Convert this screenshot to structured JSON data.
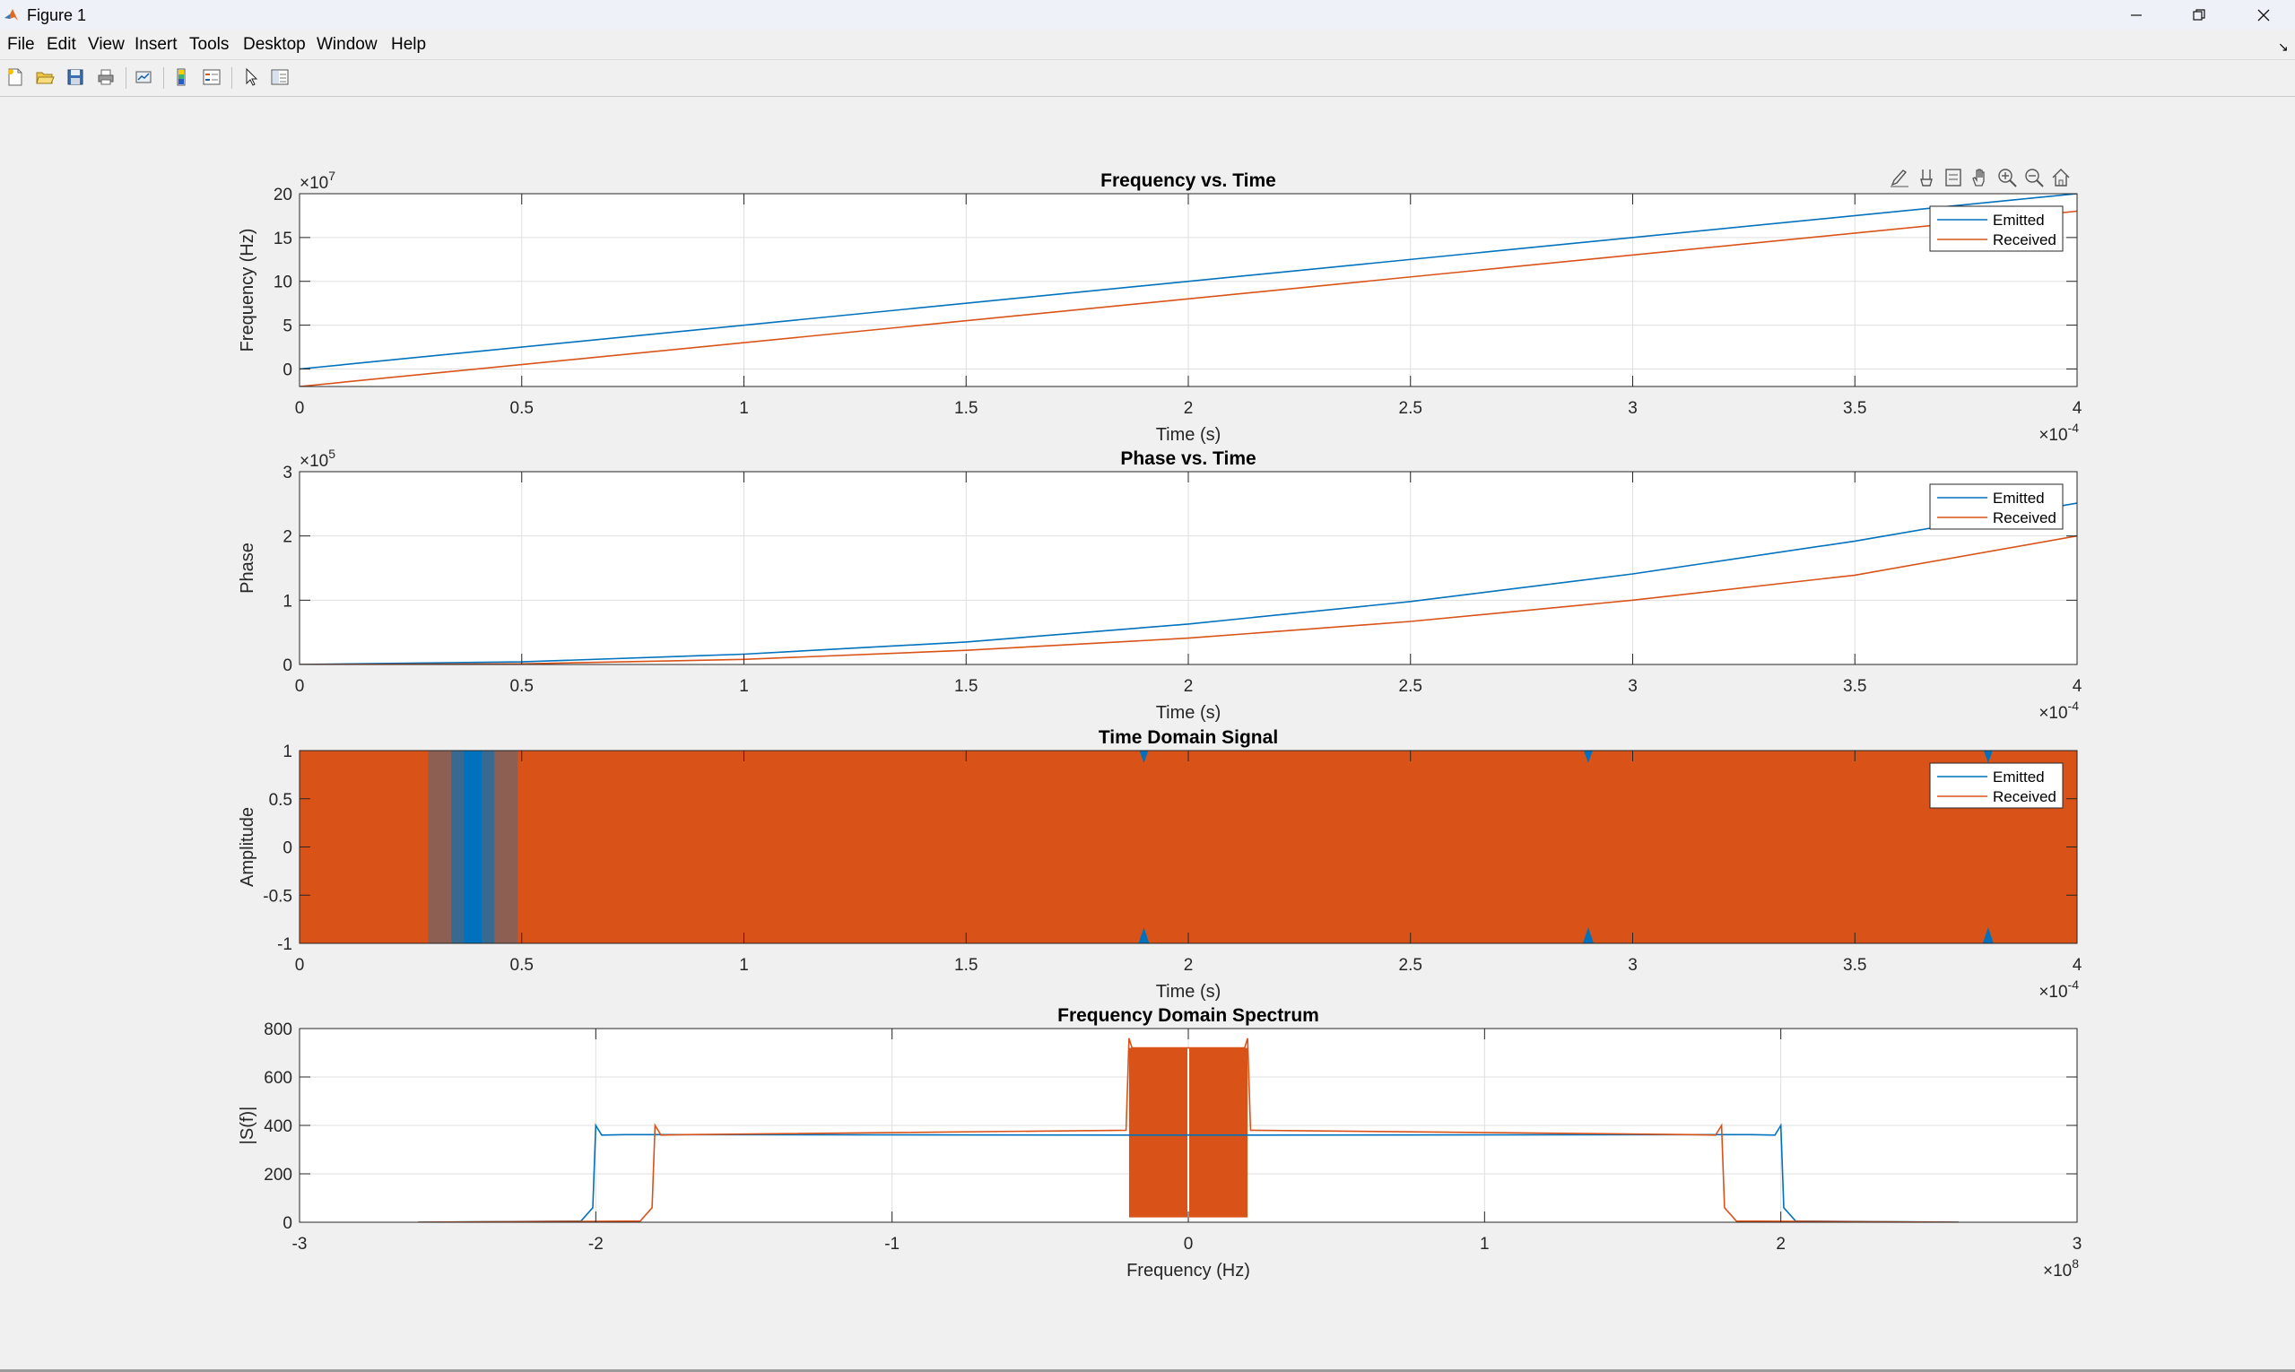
{
  "window": {
    "title": "Figure 1",
    "app_icon": "matlab-icon",
    "controls": [
      "minimize-icon",
      "restore-icon",
      "close-icon"
    ]
  },
  "menu": [
    "File",
    "Edit",
    "View",
    "Insert",
    "Tools",
    "Desktop",
    "Window",
    "Help"
  ],
  "toolbar": [
    "new-figure-icon",
    "open-file-icon",
    "save-icon",
    "print-icon",
    "link-plot-icon",
    "colorbar-icon",
    "legend-icon",
    "edit-plot-arrow-icon",
    "property-inspector-icon"
  ],
  "axes_toolbar": [
    "brush-icon",
    "data-tips-icon",
    "restore-view-icon",
    "pan-hand-icon",
    "zoom-in-icon",
    "zoom-out-icon",
    "home-icon"
  ],
  "colors": {
    "emitted": "#0072BD",
    "received": "#D95319",
    "grid": "#dfdfdf",
    "axis": "#262626"
  },
  "chart_data": [
    {
      "type": "line",
      "title": "Frequency vs. Time",
      "xlabel": "Time (s)",
      "ylabel": "Frequency (Hz)",
      "x_exponent": "-4",
      "y_exponent": "7",
      "xlim": [
        0,
        4
      ],
      "ylim": [
        -2,
        20
      ],
      "xticks": [
        0,
        0.5,
        1,
        1.5,
        2,
        2.5,
        3,
        3.5,
        4
      ],
      "xtick_labels": [
        "0",
        "0.5",
        "1",
        "1.5",
        "2",
        "2.5",
        "3",
        "3.5",
        "4"
      ],
      "yticks": [
        0,
        5,
        10,
        15,
        20
      ],
      "ytick_labels": [
        "0",
        "5",
        "10",
        "15",
        "20"
      ],
      "grid": true,
      "legend": "top-right",
      "series": [
        {
          "name": "Emitted",
          "color": "#0072BD",
          "x": [
            0,
            4
          ],
          "y": [
            0,
            20
          ]
        },
        {
          "name": "Received",
          "color": "#D95319",
          "x": [
            0,
            4
          ],
          "y": [
            -2,
            18
          ]
        }
      ]
    },
    {
      "type": "line",
      "title": "Phase vs. Time",
      "xlabel": "Time (s)",
      "ylabel": "Phase",
      "x_exponent": "-4",
      "y_exponent": "5",
      "xlim": [
        0,
        4
      ],
      "ylim": [
        0,
        3
      ],
      "xticks": [
        0,
        0.5,
        1,
        1.5,
        2,
        2.5,
        3,
        3.5,
        4
      ],
      "xtick_labels": [
        "0",
        "0.5",
        "1",
        "1.5",
        "2",
        "2.5",
        "3",
        "3.5",
        "4"
      ],
      "yticks": [
        0,
        1,
        2,
        3
      ],
      "ytick_labels": [
        "0",
        "1",
        "2",
        "3"
      ],
      "grid": true,
      "legend": "top-right",
      "series": [
        {
          "name": "Emitted",
          "color": "#0072BD",
          "x": [
            0,
            0.5,
            1,
            1.5,
            2,
            2.5,
            3,
            3.5,
            4
          ],
          "y": [
            0,
            0.04,
            0.16,
            0.35,
            0.63,
            0.98,
            1.41,
            1.92,
            2.51
          ]
        },
        {
          "name": "Received",
          "color": "#D95319",
          "x": [
            0,
            0.5,
            1,
            1.5,
            2,
            2.5,
            3,
            3.5,
            4
          ],
          "y": [
            0,
            0.01,
            0.08,
            0.22,
            0.41,
            0.67,
            1.0,
            1.39,
            2.0
          ]
        }
      ]
    },
    {
      "type": "area",
      "title": "Time Domain Signal",
      "xlabel": "Time (s)",
      "ylabel": "Amplitude",
      "x_exponent": "-4",
      "xlim": [
        0,
        4
      ],
      "ylim": [
        -1,
        1
      ],
      "xticks": [
        0,
        0.5,
        1,
        1.5,
        2,
        2.5,
        3,
        3.5,
        4
      ],
      "xtick_labels": [
        "0",
        "0.5",
        "1",
        "1.5",
        "2",
        "2.5",
        "3",
        "3.5",
        "4"
      ],
      "yticks": [
        -1,
        -0.5,
        0,
        0.5,
        1
      ],
      "ytick_labels": [
        "-1",
        "-0.5",
        "0",
        "0.5",
        "1"
      ],
      "grid": true,
      "legend": "top-right",
      "series": [
        {
          "name": "Emitted",
          "color": "#0072BD",
          "x": [
            0,
            4
          ],
          "y_min": -1,
          "y_max": 1
        },
        {
          "name": "Received",
          "color": "#D95319",
          "x": [
            0,
            4
          ],
          "y_min": -1,
          "y_max": 1
        }
      ],
      "emitted_visible_bursts": [
        0.39
      ],
      "emitted_visible_spikes": [
        1.9,
        2.9,
        3.8
      ]
    },
    {
      "type": "line",
      "title": "Frequency Domain Spectrum",
      "xlabel": "Frequency (Hz)",
      "ylabel": "|S(f)|",
      "x_exponent": "8",
      "xlim": [
        -3,
        3
      ],
      "ylim": [
        0,
        800
      ],
      "xticks": [
        -3,
        -2,
        -1,
        0,
        1,
        2,
        3
      ],
      "xtick_labels": [
        "-3",
        "-2",
        "-1",
        "0",
        "1",
        "2",
        "3"
      ],
      "yticks": [
        0,
        200,
        400,
        600,
        800
      ],
      "ytick_labels": [
        "0",
        "200",
        "400",
        "600",
        "800"
      ],
      "grid": true,
      "series": [
        {
          "name": "Emitted",
          "color": "#0072BD",
          "x": [
            -2.6,
            -2.05,
            -2.01,
            -2.0,
            -1.98,
            -1.9,
            -0.2,
            0.2,
            1.9,
            1.98,
            2.0,
            2.01,
            2.05,
            2.6
          ],
          "y": [
            0,
            5,
            60,
            400,
            360,
            362,
            360,
            360,
            362,
            360,
            400,
            60,
            5,
            0
          ]
        },
        {
          "name": "Received",
          "color": "#D95319",
          "x": [
            -2.6,
            -1.85,
            -1.81,
            -1.8,
            -1.78,
            -1.7,
            -0.21,
            -0.2,
            -0.19,
            0.19,
            0.2,
            0.21,
            1.7,
            1.78,
            1.8,
            1.81,
            1.85,
            2.6
          ],
          "y": [
            0,
            5,
            60,
            400,
            360,
            362,
            380,
            760,
            720,
            720,
            760,
            380,
            362,
            360,
            400,
            60,
            5,
            0
          ]
        }
      ],
      "received_band": {
        "x_min": -0.2,
        "x_max": 0.2,
        "y_min": 20,
        "y_max": 720
      }
    }
  ]
}
